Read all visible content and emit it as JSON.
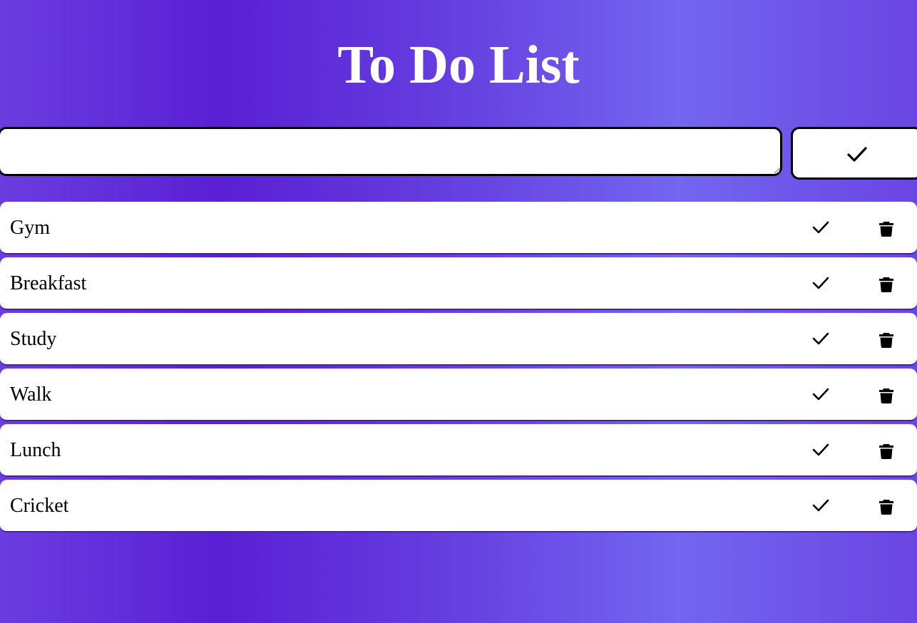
{
  "app": {
    "title": "To Do List"
  },
  "input": {
    "value": "",
    "placeholder": ""
  },
  "add_button": {
    "icon": "check-icon"
  },
  "tasks": [
    {
      "text": "Gym",
      "complete_icon": "check-icon",
      "delete_icon": "trash-icon"
    },
    {
      "text": "Breakfast",
      "complete_icon": "check-icon",
      "delete_icon": "trash-icon"
    },
    {
      "text": "Study",
      "complete_icon": "check-icon",
      "delete_icon": "trash-icon"
    },
    {
      "text": "Walk",
      "complete_icon": "check-icon",
      "delete_icon": "trash-icon"
    },
    {
      "text": "Lunch",
      "complete_icon": "check-icon",
      "delete_icon": "trash-icon"
    },
    {
      "text": "Cricket",
      "complete_icon": "check-icon",
      "delete_icon": "trash-icon"
    }
  ],
  "colors": {
    "background_gradient": [
      "#6a3de0",
      "#5a1fd4",
      "#6640e0",
      "#7366f0",
      "#6a45e2"
    ],
    "title": "#ffffff",
    "item_background": "#ffffff",
    "icon": "#000000"
  }
}
